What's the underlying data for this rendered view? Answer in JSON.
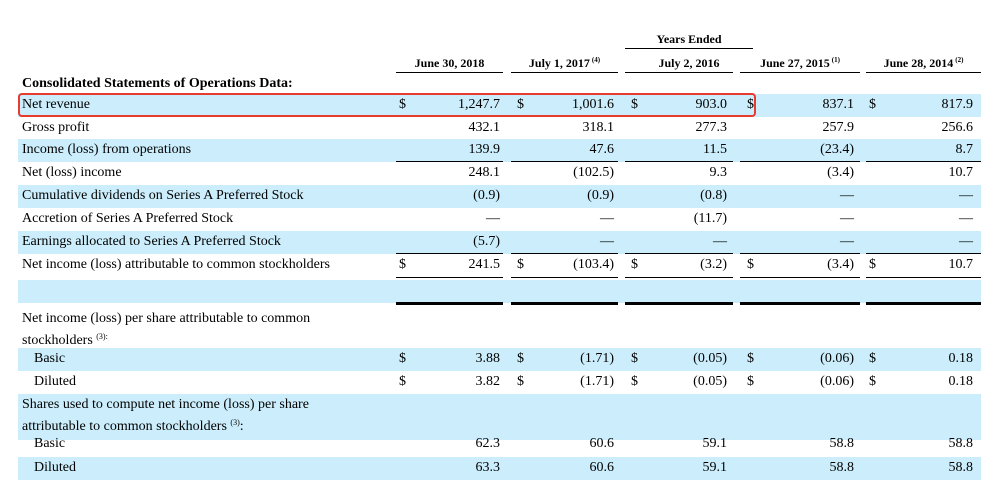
{
  "header": {
    "years_ended": "Years Ended",
    "columns": [
      {
        "label": "June 30, 2018",
        "note": ""
      },
      {
        "label": "July 1, 2017",
        "note": "(4)"
      },
      {
        "label": "July 2, 2016",
        "note": ""
      },
      {
        "label": "June 27, 2015",
        "note": "(1)"
      },
      {
        "label": "June 28, 2014",
        "note": "(2)"
      }
    ]
  },
  "section_title": "Consolidated Statements of Operations Data:",
  "dollar": "$",
  "rows": [
    {
      "label": "Net revenue",
      "values": [
        "1,247.7",
        "1,001.6",
        "903.0",
        "837.1",
        "817.9"
      ]
    },
    {
      "label": "Gross profit",
      "values": [
        "432.1",
        "318.1",
        "277.3",
        "257.9",
        "256.6"
      ]
    },
    {
      "label": "Income (loss) from operations",
      "values": [
        "139.9",
        "47.6",
        "11.5",
        "(23.4)",
        "8.7"
      ]
    },
    {
      "label": "Net (loss) income",
      "values": [
        "248.1",
        "(102.5)",
        "9.3",
        "(3.4)",
        "10.7"
      ]
    },
    {
      "label": "Cumulative dividends on Series A Preferred Stock",
      "values": [
        "(0.9)",
        "(0.9)",
        "(0.8)",
        "—",
        "—"
      ]
    },
    {
      "label": "Accretion of Series A Preferred Stock",
      "values": [
        "—",
        "—",
        "(11.7)",
        "—",
        "—"
      ]
    },
    {
      "label": "Earnings allocated to Series A Preferred Stock",
      "values": [
        "(5.7)",
        "—",
        "—",
        "—",
        "—"
      ]
    },
    {
      "label": "Net income (loss) attributable to common stockholders",
      "values": [
        "241.5",
        "(103.4)",
        "(3.2)",
        "(3.4)",
        "10.7"
      ]
    }
  ],
  "eps_heading": {
    "line1": "Net income (loss) per share attributable to common",
    "line2": "stockholders",
    "note": "(3):"
  },
  "eps_rows": [
    {
      "label": "Basic",
      "values": [
        "3.88",
        "(1.71)",
        "(0.05)",
        "(0.06)",
        "0.18"
      ]
    },
    {
      "label": "Diluted",
      "values": [
        "3.82",
        "(1.71)",
        "(0.05)",
        "(0.06)",
        "0.18"
      ]
    }
  ],
  "shares_heading": {
    "line1": "Shares used to compute net income (loss) per share",
    "line2": "attributable to common stockholders",
    "note": "(3)",
    "suffix": ":"
  },
  "share_rows": [
    {
      "label": "Basic",
      "values": [
        "62.3",
        "60.6",
        "59.1",
        "58.8",
        "58.8"
      ]
    },
    {
      "label": "Diluted",
      "values": [
        "63.3",
        "60.6",
        "59.1",
        "58.8",
        "58.8"
      ]
    }
  ],
  "highlight_color": "#e63b2e",
  "shade_color": "#cceefc"
}
